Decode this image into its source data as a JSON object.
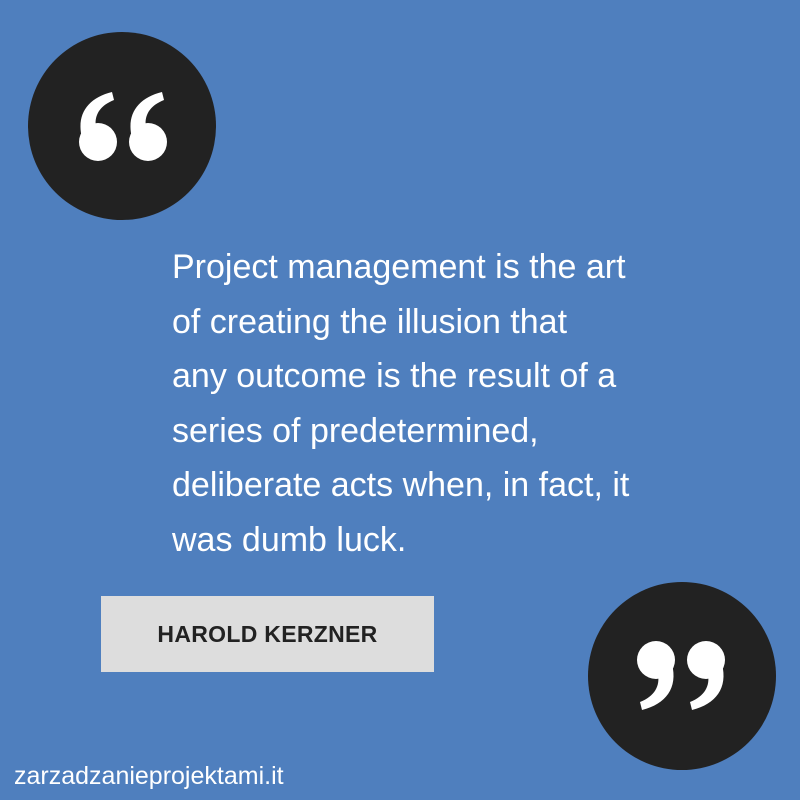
{
  "quote": {
    "lines": [
      "Project management is the art",
      "of creating the illusion that",
      "any outcome is the result of a",
      "series of predetermined,",
      "deliberate acts when, in fact, it",
      "was dumb luck."
    ]
  },
  "author": {
    "name": "HAROLD KERZNER"
  },
  "footer": {
    "website": "zarzadzanieprojektami.it"
  },
  "icons": {
    "open_quote": "open-quote-icon",
    "close_quote": "close-quote-icon"
  },
  "colors": {
    "background": "#4f7fbe",
    "circle": "#222222",
    "author_box": "#dddddd",
    "text": "#ffffff"
  }
}
